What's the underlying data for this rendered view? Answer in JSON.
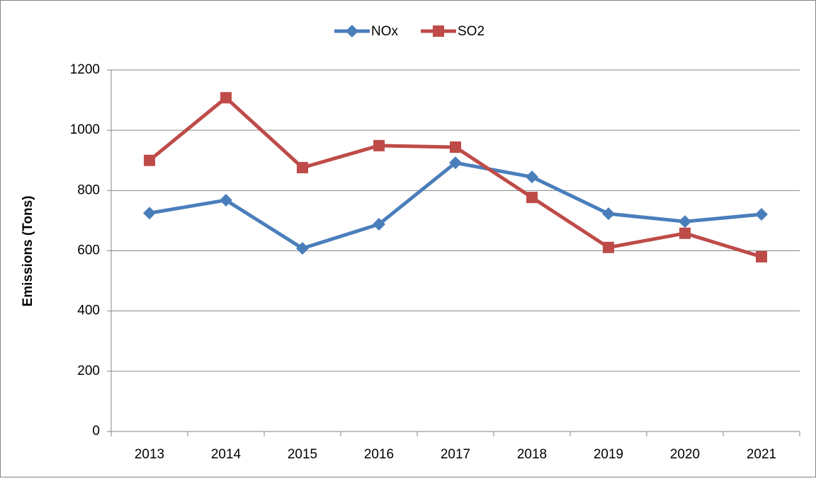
{
  "chart_data": {
    "type": "line",
    "y_label": "Emissions (Tons)",
    "categories": [
      "2013",
      "2014",
      "2015",
      "2016",
      "2017",
      "2018",
      "2019",
      "2020",
      "2021"
    ],
    "series": [
      {
        "name": "NOx",
        "color": "#4a7ebb",
        "marker": "diamond",
        "values": [
          725,
          768,
          608,
          688,
          892,
          845,
          723,
          697,
          721
        ]
      },
      {
        "name": "SO2",
        "color": "#be4b48",
        "marker": "square",
        "values": [
          900,
          1108,
          876,
          949,
          944,
          777,
          611,
          658,
          580
        ]
      }
    ],
    "ylim": [
      0,
      1200
    ],
    "yticks": [
      0,
      200,
      400,
      600,
      800,
      1000,
      1200
    ],
    "grid": true,
    "legend": "top"
  }
}
